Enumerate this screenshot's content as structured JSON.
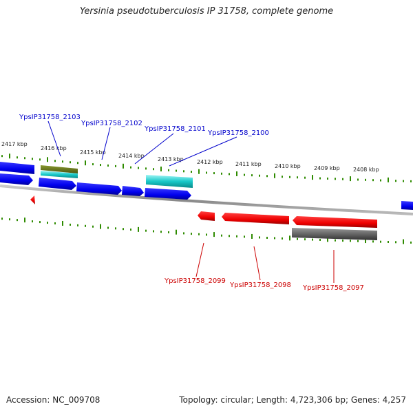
{
  "title": "Yersinia pseudotuberculosis IP 31758, complete genome",
  "footer": {
    "accession": "Accession: NC_009708",
    "topology": "Topology: circular; Length: 4,723,306 bp; Genes: 4,257"
  },
  "colors": {
    "forward_gene": "#0000ff",
    "reverse_gene": "#ff0000",
    "tick": "#2e8b00",
    "backbone": "#999999",
    "forward_label": "#0000cc",
    "reverse_label": "#cc0000",
    "feature_olive": "#6b7a1e",
    "feature_cyan": "#19c8c8",
    "feature_gray": "#666666"
  },
  "scale_ticks": [
    "2417 kbp",
    "2416 kbp",
    "2415 kbp",
    "2414 kbp",
    "2413 kbp",
    "2412 kbp",
    "2411 kbp",
    "2410 kbp",
    "2409 kbp",
    "2408 kbp"
  ],
  "gene_labels_forward": [
    "YpsIP31758_2103",
    "YpsIP31758_2102",
    "YpsIP31758_2101",
    "YpsIP31758_2100"
  ],
  "gene_labels_reverse": [
    "YpsIP31758_2099",
    "YpsIP31758_2098",
    "YpsIP31758_2097"
  ]
}
